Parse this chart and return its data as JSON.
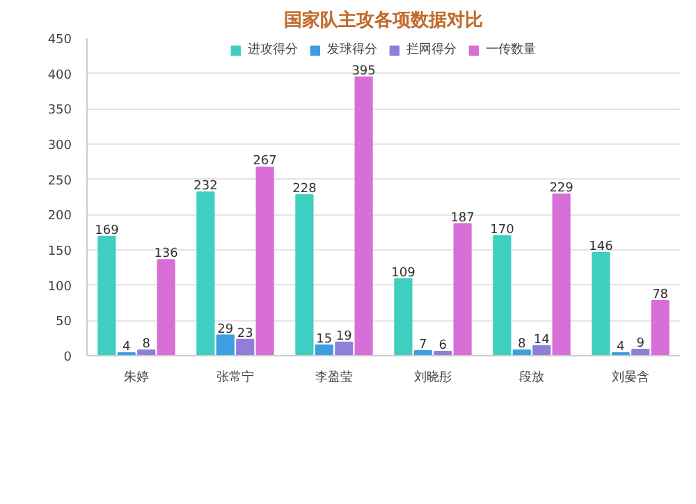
{
  "chart_data": {
    "type": "bar",
    "title": "国家队主攻各项数据对比",
    "categories": [
      "朱婷",
      "张常宁",
      "李盈莹",
      "刘晓彤",
      "段放",
      "刘晏含"
    ],
    "series": [
      {
        "name": "进攻得分",
        "color": "#3ecfc0",
        "values": [
          169,
          232,
          228,
          109,
          170,
          146
        ]
      },
      {
        "name": "发球得分",
        "color": "#3d9fe0",
        "values": [
          4,
          29,
          15,
          7,
          8,
          4
        ]
      },
      {
        "name": "拦网得分",
        "color": "#8f7fd9",
        "values": [
          8,
          23,
          19,
          6,
          14,
          9
        ]
      },
      {
        "name": "一传数量",
        "color": "#d76fd6",
        "values": [
          136,
          267,
          395,
          187,
          229,
          78
        ]
      }
    ],
    "ylim": [
      0,
      450
    ],
    "yticks": [
      0,
      50,
      100,
      150,
      200,
      250,
      300,
      350,
      400,
      450
    ],
    "grid": "y",
    "legend": "top",
    "data_labels": true
  }
}
